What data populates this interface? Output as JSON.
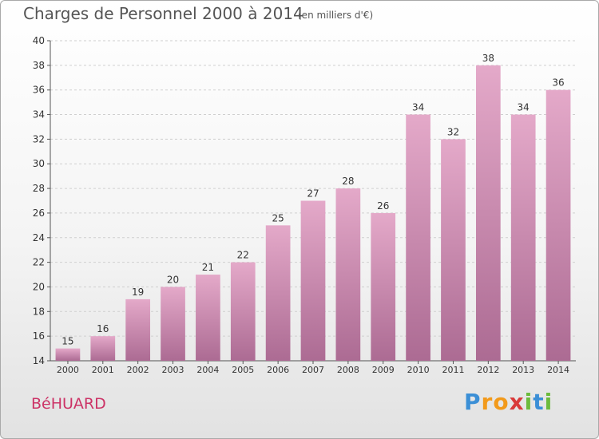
{
  "chart_data": {
    "type": "bar",
    "title": "Charges de Personnel 2000 à 2014",
    "subtitle": "(en milliers d'€)",
    "categories": [
      "2000",
      "2001",
      "2002",
      "2003",
      "2004",
      "2005",
      "2006",
      "2007",
      "2008",
      "2009",
      "2010",
      "2011",
      "2012",
      "2013",
      "2014"
    ],
    "values": [
      15,
      16,
      19,
      20,
      21,
      22,
      25,
      27,
      28,
      26,
      34,
      32,
      38,
      34,
      36
    ],
    "ylim": [
      14,
      40
    ],
    "yticks": [
      14,
      16,
      18,
      20,
      22,
      24,
      26,
      28,
      30,
      32,
      34,
      36,
      38,
      40
    ],
    "grid": true,
    "bar_color": "#d68fb5"
  },
  "commune": "BéHUARD",
  "logo": {
    "letters": [
      "P",
      "r",
      "o",
      "x",
      "i",
      "t",
      "i"
    ],
    "colors": [
      "#3b8fd6",
      "#f29a1b",
      "#f29a1b",
      "#d93a3a",
      "#6cbb3c",
      "#3b8fd6",
      "#6cbb3c"
    ]
  }
}
